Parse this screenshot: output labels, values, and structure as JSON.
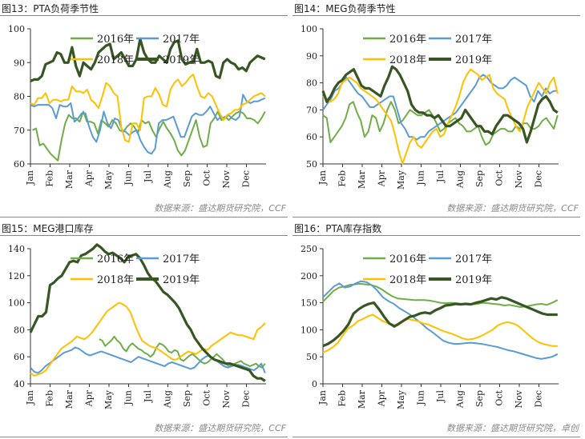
{
  "source_prefix": "数据来源：",
  "panels": [
    {
      "title": "图13：PTA负荷季节性",
      "source": "盛达期货研究院，CCF"
    },
    {
      "title": "图14：MEG负荷季节性",
      "source": "盛达期货研究院，CCF"
    },
    {
      "title": "图15：MEG港口库存",
      "source": "盛达期货研究院，CCF"
    },
    {
      "title": "图16：PTA库存指数",
      "source": "盛达期货研究院，卓创"
    }
  ],
  "colors": {
    "2016年": "#70ad47",
    "2017年": "#5b9bd5",
    "2018年": "#ffc000",
    "2019年": "#375623"
  },
  "chart_data": [
    {
      "type": "line",
      "title": "图13：PTA负荷季节性",
      "x_ticks": [
        "Jan",
        "Feb",
        "Mar",
        "Apr",
        "May",
        "Jun",
        "Jul",
        "Aug",
        "Sep",
        "Oct",
        "Nov",
        "Dec"
      ],
      "y_ticks": [
        60,
        70,
        80,
        90,
        100
      ],
      "ylim": [
        60,
        100
      ],
      "grid": false,
      "legend": "top",
      "series": [
        {
          "name": "2016年",
          "start": 0.1,
          "values": [
            70,
            70.5,
            65.5,
            66,
            64.5,
            63,
            62,
            61,
            67,
            72,
            74.5,
            73.5,
            73.5,
            72.5,
            75.5,
            72.5,
            72.5,
            72,
            69,
            73,
            72,
            71,
            73,
            72,
            70,
            69.5,
            71,
            72,
            71,
            69,
            73,
            72,
            72.5,
            70,
            68,
            70.5,
            72.5,
            70.5,
            69,
            67,
            64,
            62.5,
            64,
            67,
            70,
            73,
            68,
            65,
            65.5,
            72,
            73.5,
            75.5,
            73,
            74,
            73,
            74,
            75,
            75.5,
            75,
            73.5,
            73.5,
            73,
            72,
            73.5,
            75.5
          ]
        },
        {
          "name": "2017年",
          "start": 0,
          "values": [
            77.5,
            77,
            77.5,
            77.5,
            77.5,
            77.5,
            76.5,
            73.5,
            77.5,
            77,
            77,
            78,
            72.5,
            73.5,
            75,
            75,
            71,
            68,
            66.5,
            70,
            75.5,
            72,
            70.5,
            73.5,
            73,
            70,
            69.5,
            68.5,
            69.5,
            70,
            67,
            65,
            63.5,
            63,
            64.5,
            72,
            73,
            73,
            73.5,
            74,
            71,
            68,
            68,
            71,
            74,
            75,
            74.5,
            74.5,
            75.5,
            77,
            75,
            73,
            74,
            73.5,
            74.5,
            73.5,
            73,
            74,
            80.5,
            78.5,
            78,
            78.5,
            78.5,
            79,
            79.5
          ]
        },
        {
          "name": "2018年",
          "start": 0,
          "values": [
            78,
            77.5,
            79.5,
            79.5,
            81,
            78,
            79,
            79,
            78.5,
            79,
            79,
            83,
            81.5,
            81.5,
            81,
            82,
            79,
            78,
            76.5,
            80,
            84,
            83,
            81,
            80,
            71,
            67,
            66.5,
            72,
            72,
            70,
            79.5,
            80,
            80,
            82.5,
            80.5,
            77.5,
            77,
            82,
            84,
            85,
            83,
            84,
            85.5,
            86.5,
            83,
            80,
            79.5,
            81,
            80,
            77.5,
            75,
            73,
            74.5,
            75,
            76,
            76,
            77.5,
            78,
            79,
            80,
            80.5,
            81,
            80
          ]
        },
        {
          "name": "2019年",
          "start": 0,
          "values": [
            84.5,
            85,
            85,
            86,
            89.5,
            90,
            90.5,
            93,
            92.5,
            90,
            90,
            94.5,
            89,
            86,
            90,
            89,
            88,
            90,
            93,
            94,
            95,
            95.5,
            91,
            92,
            93,
            91,
            89,
            89,
            91,
            97,
            93,
            91,
            90,
            90,
            92,
            91,
            90,
            94,
            96,
            96.5,
            91,
            89.5,
            90,
            90,
            94,
            90,
            90,
            90.5,
            90,
            86,
            85.5,
            90,
            91,
            90,
            89.5,
            88,
            88.5,
            87.5,
            90,
            91,
            92,
            91.5,
            91
          ]
        }
      ]
    },
    {
      "type": "line",
      "title": "图14：MEG负荷季节性",
      "x_ticks": [
        "Jan",
        "Feb",
        "Mar",
        "Apr",
        "May",
        "Jun",
        "Jul",
        "Aug",
        "Sep",
        "Oct",
        "Nov",
        "Dec"
      ],
      "y_ticks": [
        50,
        60,
        70,
        80,
        90,
        100
      ],
      "ylim": [
        50,
        100
      ],
      "grid": false,
      "legend": "top",
      "series": [
        {
          "name": "2016年",
          "start": 0,
          "values": [
            68,
            67,
            58,
            60,
            62,
            64,
            67,
            72,
            73,
            69,
            66,
            60,
            62,
            68,
            67,
            62,
            65,
            70,
            73,
            70,
            65,
            66,
            68,
            70,
            69,
            68,
            68,
            69,
            70,
            68,
            65,
            62,
            63,
            65,
            66,
            67,
            65,
            64,
            62,
            62,
            63,
            64,
            60,
            57,
            58,
            61,
            62,
            63,
            63,
            62,
            62,
            64,
            63,
            65,
            65,
            63,
            63,
            64,
            66,
            67,
            65,
            63,
            68
          ]
        },
        {
          "name": "2017年",
          "start": 0,
          "values": [
            70,
            72,
            74,
            77,
            78,
            80,
            82,
            80,
            78,
            76,
            75,
            73,
            71,
            71,
            72,
            73,
            74,
            75,
            75,
            70,
            65,
            63,
            60,
            60,
            59,
            60,
            60,
            62,
            63,
            64,
            65,
            66,
            67,
            68,
            69,
            71,
            73,
            75,
            77,
            79,
            82,
            83,
            82,
            80,
            79,
            78,
            78,
            79,
            81,
            82,
            81,
            80,
            79,
            75,
            73,
            77,
            75,
            78,
            76,
            77,
            77
          ]
        },
        {
          "name": "2018年",
          "start": 0,
          "values": [
            75,
            74,
            73,
            74,
            76,
            80,
            81,
            82,
            81,
            80,
            78,
            77,
            76,
            75,
            74,
            72,
            70,
            68,
            66,
            61,
            55,
            50,
            54,
            58,
            60,
            57,
            56,
            58,
            60,
            62,
            63,
            60,
            61,
            65,
            68,
            71,
            75,
            80,
            83,
            85,
            84,
            83,
            81,
            82,
            83,
            78,
            76,
            75,
            74,
            70,
            67,
            64,
            62,
            66,
            71,
            74,
            77,
            80,
            78,
            76,
            80,
            82,
            76
          ]
        },
        {
          "name": "2019年",
          "start": 0,
          "values": [
            77,
            73,
            75,
            78,
            80,
            81,
            83,
            84,
            85,
            82,
            79,
            78,
            78,
            77,
            76,
            75,
            79,
            82,
            86,
            85,
            83,
            80,
            77,
            72,
            70,
            69,
            69,
            68,
            68,
            67,
            68,
            66,
            64,
            64,
            65,
            66,
            67,
            70,
            68,
            66,
            64,
            64,
            62,
            62,
            61,
            64,
            66,
            68,
            68,
            67,
            66,
            65,
            63,
            58,
            62,
            67,
            72,
            74,
            75,
            73,
            70,
            69
          ]
        }
      ]
    },
    {
      "type": "line",
      "title": "图15：MEG港口库存",
      "x_ticks": [
        "Jan",
        "Feb",
        "Mar",
        "Apr",
        "May",
        "Jun",
        "Jul",
        "Aug",
        "Sep",
        "Oct",
        "Nov",
        "Dec"
      ],
      "y_ticks": [
        40,
        60,
        80,
        100,
        120,
        140
      ],
      "ylim": [
        40,
        140
      ],
      "grid": false,
      "legend": "top",
      "series": [
        {
          "name": "2016年",
          "start": 3.5,
          "values": [
            73,
            72,
            68,
            70,
            72,
            75,
            72,
            70,
            66,
            64,
            68,
            70,
            68,
            66,
            65,
            63,
            62,
            60,
            62,
            67,
            70,
            69,
            67,
            64,
            63,
            65,
            64,
            58,
            57,
            59,
            61,
            62,
            60,
            58,
            56,
            55,
            56,
            58,
            60,
            62,
            60,
            58,
            55,
            53,
            54,
            55,
            56,
            57,
            55,
            54,
            53,
            54,
            55,
            53,
            52,
            55
          ]
        },
        {
          "name": "2017年",
          "start": 0,
          "values": [
            52,
            49,
            48,
            50,
            53,
            55,
            57,
            59,
            61,
            63,
            64,
            65,
            67,
            66,
            64,
            62,
            61,
            62,
            63,
            64,
            63,
            62,
            61,
            60,
            59,
            58,
            57,
            56,
            58,
            60,
            59,
            58,
            57,
            56,
            55,
            54,
            53,
            55,
            56,
            55,
            54,
            53,
            52,
            51,
            52,
            55,
            58,
            60,
            61,
            59,
            57,
            55,
            53,
            52,
            53,
            54,
            54,
            53,
            52,
            51,
            50,
            52,
            55,
            48
          ]
        },
        {
          "name": "2018年",
          "start": 0,
          "values": [
            48,
            46,
            47,
            48,
            50,
            54,
            58,
            62,
            66,
            68,
            70,
            72,
            75,
            74,
            73,
            75,
            78,
            82,
            86,
            90,
            94,
            96,
            98,
            100,
            99,
            97,
            93,
            85,
            78,
            72,
            70,
            68,
            67,
            66,
            64,
            62,
            60,
            58,
            58,
            60,
            62,
            64,
            63,
            62,
            64,
            66,
            65,
            68,
            70,
            72,
            74,
            76,
            78,
            77,
            76,
            76,
            75,
            74,
            73,
            80,
            82,
            85
          ]
        },
        {
          "name": "2019年",
          "start": 0,
          "values": [
            78,
            84,
            90,
            90,
            93,
            113,
            115,
            118,
            120,
            125,
            130,
            131,
            130,
            135,
            136,
            138,
            140,
            143,
            141,
            138,
            136,
            137,
            135,
            133,
            130,
            134,
            135,
            136,
            133,
            128,
            122,
            118,
            116,
            112,
            108,
            106,
            103,
            100,
            96,
            90,
            84,
            80,
            74,
            70,
            66,
            63,
            60,
            58,
            57,
            56,
            55,
            55,
            54,
            53,
            52,
            51,
            50,
            46,
            44,
            44,
            42
          ]
        }
      ]
    },
    {
      "type": "line",
      "title": "图16：PTA库存指数",
      "x_ticks": [
        "Jan",
        "Feb",
        "Mar",
        "Apr",
        "May",
        "Jun",
        "Jul",
        "Aug",
        "Sep",
        "Oct",
        "Nov",
        "Dec"
      ],
      "y_ticks": [
        0,
        50,
        100,
        150,
        200,
        250
      ],
      "ylim": [
        0,
        250
      ],
      "grid": false,
      "legend": "top",
      "series": [
        {
          "name": "2016年",
          "start": 0,
          "values": [
            152,
            162,
            172,
            178,
            180,
            183,
            184,
            185,
            184,
            183,
            180,
            175,
            168,
            162,
            158,
            157,
            156,
            155,
            155,
            155,
            154,
            152,
            150,
            149,
            150,
            149,
            148,
            148,
            147,
            148,
            150,
            149,
            148,
            147,
            145,
            146,
            144,
            142,
            143,
            145,
            147,
            148,
            146,
            150,
            155
          ]
        },
        {
          "name": "2017年",
          "start": 0,
          "values": [
            160,
            170,
            180,
            186,
            178,
            180,
            186,
            190,
            188,
            182,
            172,
            160,
            153,
            148,
            140,
            134,
            128,
            120,
            112,
            103,
            96,
            88,
            80,
            76,
            74,
            74,
            75,
            76,
            75,
            74,
            72,
            70,
            68,
            65,
            62,
            60,
            57,
            54,
            51,
            48,
            46,
            48,
            50,
            55
          ]
        },
        {
          "name": "2018年",
          "start": 0,
          "values": [
            58,
            62,
            68,
            76,
            90,
            102,
            108,
            116,
            120,
            125,
            128,
            122,
            116,
            112,
            110,
            108,
            115,
            120,
            118,
            116,
            112,
            110,
            106,
            102,
            98,
            95,
            92,
            88,
            84,
            82,
            83,
            86,
            90,
            95,
            100,
            108,
            112,
            114,
            112,
            108,
            100,
            92,
            84,
            78,
            74,
            72,
            70,
            70
          ]
        },
        {
          "name": "2019年",
          "start": 0,
          "values": [
            70,
            74,
            80,
            88,
            98,
            110,
            130,
            138,
            144,
            148,
            150,
            138,
            124,
            112,
            106,
            112,
            118,
            124,
            126,
            130,
            132,
            130,
            136,
            140,
            145,
            146,
            148,
            147,
            148,
            147,
            150,
            152,
            155,
            158,
            156,
            160,
            158,
            154,
            150,
            146,
            142,
            138,
            134,
            130,
            128,
            128,
            128
          ]
        }
      ]
    }
  ]
}
